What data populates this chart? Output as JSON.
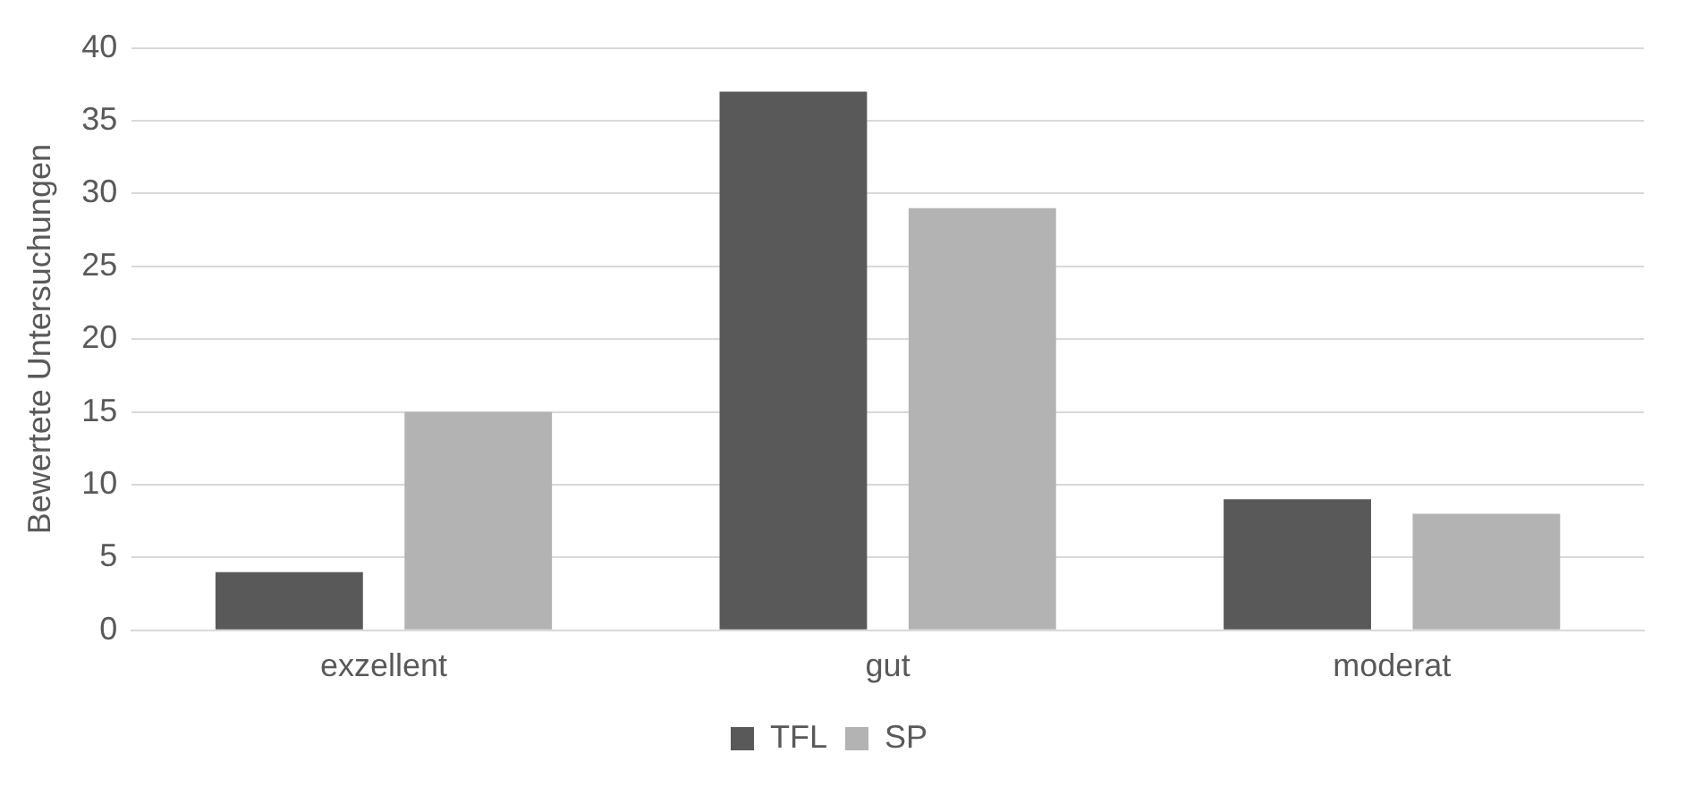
{
  "chart_data": {
    "type": "bar",
    "ylabel": "Bewertete Untersuchungen",
    "categories": [
      "exzellent",
      "gut",
      "moderat"
    ],
    "series": [
      {
        "name": "TFL",
        "color": "#595959",
        "values": [
          4,
          37,
          9
        ]
      },
      {
        "name": "SP",
        "color": "#b3b3b3",
        "values": [
          15,
          29,
          8
        ]
      }
    ],
    "ylim": [
      0,
      40
    ],
    "yticks": [
      0,
      5,
      10,
      15,
      20,
      25,
      30,
      35,
      40
    ],
    "grid": "y",
    "legend": "bottom"
  }
}
